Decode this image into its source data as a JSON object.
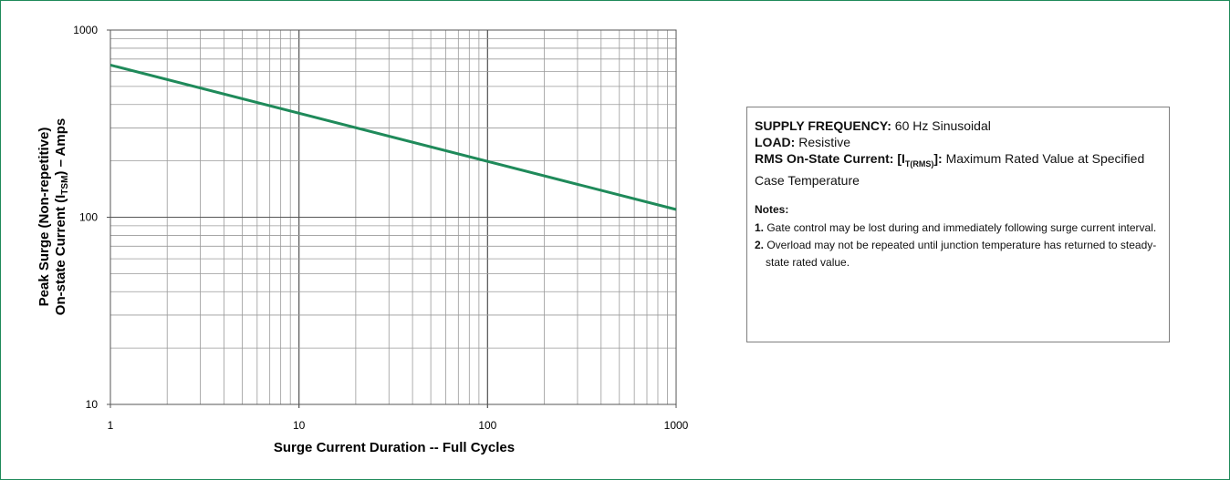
{
  "chart_data": {
    "type": "line",
    "title": "",
    "xlabel": "Surge Current Duration -- Full Cycles",
    "ylabel_line1": "Peak Surge (Non-repetitive)",
    "ylabel_line2_prefix": "On-state Current (I",
    "ylabel_line2_sub": "TSM",
    "ylabel_line2_suffix": ") – Amps",
    "x_scale": "log",
    "y_scale": "log",
    "xlim": [
      1,
      1000
    ],
    "ylim": [
      10,
      1000
    ],
    "x_tick_labels": [
      "1",
      "10",
      "100",
      "1000"
    ],
    "y_tick_labels": [
      "10",
      "100",
      "1000"
    ],
    "grid": true,
    "series": [
      {
        "color": "#1f8a5a",
        "x": [
          1,
          1000
        ],
        "y": [
          650,
          110
        ]
      }
    ]
  },
  "notes": {
    "supply_label": "SUPPLY FREQUENCY:",
    "supply_value": " 60 Hz Sinusoidal",
    "load_label": "LOAD:",
    "load_value": " Resistive",
    "rms_label": "RMS On-State Current: [I",
    "rms_sub": "T(RMS)",
    "rms_label_end": "]:",
    "rms_value": " Maximum Rated Value at Specified Case Temperature",
    "notes_title": "Notes:",
    "note1_num": "1.",
    "note1_text": " Gate control may be lost during and immediately following surge current interval.",
    "note2_num": "2.",
    "note2_text": " Overload may not be repeated until junction temperature has returned to steady-state rated value."
  }
}
